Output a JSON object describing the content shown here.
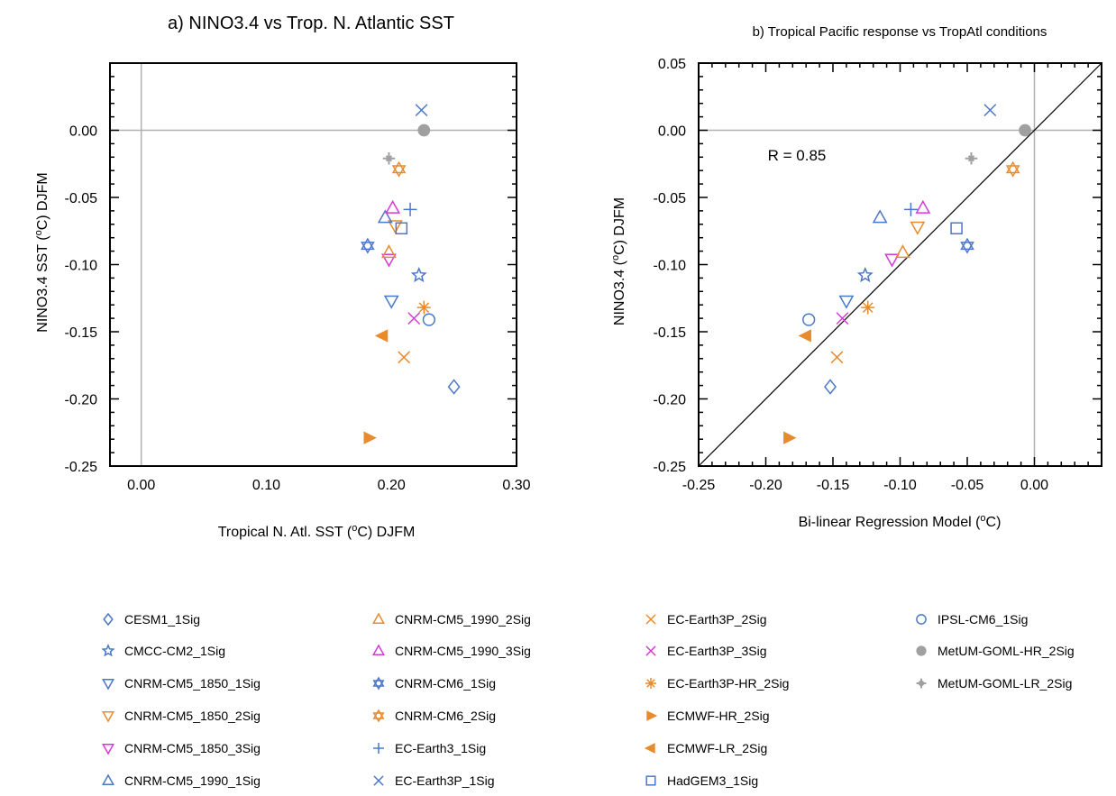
{
  "chart_data": [
    {
      "type": "scatter",
      "title": "a) NINO3.4 vs Trop. N. Atlantic SST",
      "xlabel_pre": "Tropical N. Atl. SST (",
      "xlabel_sup": "o",
      "xlabel_post": "C) DJFM",
      "ylabel_pre": "NINO3.4 SST (",
      "ylabel_sup": "o",
      "ylabel_post": "C) DJFM",
      "xlim": [
        -0.025,
        0.3
      ],
      "ylim": [
        -0.25,
        0.05
      ],
      "xticks": [
        {
          "v": 0.0,
          "label": "0.00"
        },
        {
          "v": 0.1,
          "label": "0.10"
        },
        {
          "v": 0.2,
          "label": "0.20"
        },
        {
          "v": 0.3,
          "label": "0.30"
        }
      ],
      "yticks": [
        {
          "v": 0.0,
          "label": "0.00"
        },
        {
          "v": -0.05,
          "label": "-0.05"
        },
        {
          "v": -0.1,
          "label": "-0.10"
        },
        {
          "v": -0.15,
          "label": "-0.15"
        },
        {
          "v": -0.2,
          "label": "-0.20"
        },
        {
          "v": -0.25,
          "label": "-0.25"
        }
      ],
      "reference_lines": {
        "x": 0.0,
        "y": 0.0
      },
      "points": [
        {
          "model": "CESM1_1Sig",
          "x": 0.25,
          "y": -0.191
        },
        {
          "model": "CMCC-CM2_1Sig",
          "x": 0.222,
          "y": -0.108
        },
        {
          "model": "CNRM-CM5_1850_1Sig",
          "x": 0.2,
          "y": -0.127
        },
        {
          "model": "CNRM-CM5_1850_2Sig",
          "x": 0.203,
          "y": -0.071
        },
        {
          "model": "CNRM-CM5_1850_3Sig",
          "x": 0.198,
          "y": -0.096
        },
        {
          "model": "CNRM-CM5_1990_1Sig",
          "x": 0.195,
          "y": -0.065
        },
        {
          "model": "CNRM-CM5_1990_2Sig",
          "x": 0.198,
          "y": -0.091
        },
        {
          "model": "CNRM-CM5_1990_3Sig",
          "x": 0.201,
          "y": -0.058
        },
        {
          "model": "CNRM-CM6_1Sig",
          "x": 0.181,
          "y": -0.086
        },
        {
          "model": "CNRM-CM6_2Sig",
          "x": 0.206,
          "y": -0.029
        },
        {
          "model": "EC-Earth3_1Sig",
          "x": 0.215,
          "y": -0.059
        },
        {
          "model": "EC-Earth3P_1Sig",
          "x": 0.224,
          "y": 0.015
        },
        {
          "model": "EC-Earth3P_2Sig",
          "x": 0.21,
          "y": -0.169
        },
        {
          "model": "EC-Earth3P_3Sig",
          "x": 0.218,
          "y": -0.14
        },
        {
          "model": "EC-Earth3P-HR_2Sig",
          "x": 0.226,
          "y": -0.132
        },
        {
          "model": "ECMWF-HR_2Sig",
          "x": 0.182,
          "y": -0.229
        },
        {
          "model": "ECMWF-LR_2Sig",
          "x": 0.193,
          "y": -0.153
        },
        {
          "model": "HadGEM3_1Sig",
          "x": 0.208,
          "y": -0.073
        },
        {
          "model": "IPSL-CM6_1Sig",
          "x": 0.23,
          "y": -0.141
        },
        {
          "model": "MetUM-GOML-HR_2Sig",
          "x": 0.226,
          "y": 0.0
        },
        {
          "model": "MetUM-GOML-LR_2Sig",
          "x": 0.198,
          "y": -0.021
        }
      ]
    },
    {
      "type": "scatter",
      "title": "b) Tropical Pacific response vs TropAtl conditions",
      "xlabel_pre": "Bi-linear Regression Model (",
      "xlabel_sup": "o",
      "xlabel_post": "C)",
      "ylabel_pre": "NINO3.4 (",
      "ylabel_sup": "o",
      "ylabel_post": "C) DJFM",
      "annotation": "R = 0.85",
      "xlim": [
        -0.25,
        0.05
      ],
      "ylim": [
        -0.25,
        0.05
      ],
      "xticks": [
        {
          "v": -0.25,
          "label": "-0.25"
        },
        {
          "v": -0.2,
          "label": "-0.20"
        },
        {
          "v": -0.15,
          "label": "-0.15"
        },
        {
          "v": -0.1,
          "label": "-0.10"
        },
        {
          "v": -0.05,
          "label": "-0.05"
        },
        {
          "v": 0.0,
          "label": "0.00"
        }
      ],
      "yticks": [
        {
          "v": 0.05,
          "label": "0.05"
        },
        {
          "v": 0.0,
          "label": "0.00"
        },
        {
          "v": -0.05,
          "label": "-0.05"
        },
        {
          "v": -0.1,
          "label": "-0.10"
        },
        {
          "v": -0.15,
          "label": "-0.15"
        },
        {
          "v": -0.2,
          "label": "-0.20"
        },
        {
          "v": -0.25,
          "label": "-0.25"
        }
      ],
      "reference_lines": {
        "x": 0.0,
        "y": 0.0
      },
      "one_to_one_line": true,
      "points": [
        {
          "model": "CESM1_1Sig",
          "x": -0.152,
          "y": -0.191
        },
        {
          "model": "CMCC-CM2_1Sig",
          "x": -0.126,
          "y": -0.108
        },
        {
          "model": "CNRM-CM5_1850_1Sig",
          "x": -0.14,
          "y": -0.127
        },
        {
          "model": "CNRM-CM5_1850_2Sig",
          "x": -0.087,
          "y": -0.072
        },
        {
          "model": "CNRM-CM5_1850_3Sig",
          "x": -0.106,
          "y": -0.096
        },
        {
          "model": "CNRM-CM5_1990_1Sig",
          "x": -0.115,
          "y": -0.065
        },
        {
          "model": "CNRM-CM5_1990_2Sig",
          "x": -0.098,
          "y": -0.091
        },
        {
          "model": "CNRM-CM5_1990_3Sig",
          "x": -0.083,
          "y": -0.058
        },
        {
          "model": "CNRM-CM6_1Sig",
          "x": -0.05,
          "y": -0.086
        },
        {
          "model": "CNRM-CM6_2Sig",
          "x": -0.016,
          "y": -0.029
        },
        {
          "model": "EC-Earth3_1Sig",
          "x": -0.092,
          "y": -0.059
        },
        {
          "model": "EC-Earth3P_1Sig",
          "x": -0.033,
          "y": 0.015
        },
        {
          "model": "EC-Earth3P_2Sig",
          "x": -0.147,
          "y": -0.169
        },
        {
          "model": "EC-Earth3P_3Sig",
          "x": -0.143,
          "y": -0.14
        },
        {
          "model": "EC-Earth3P-HR_2Sig",
          "x": -0.124,
          "y": -0.132
        },
        {
          "model": "ECMWF-HR_2Sig",
          "x": -0.183,
          "y": -0.229
        },
        {
          "model": "ECMWF-LR_2Sig",
          "x": -0.17,
          "y": -0.153
        },
        {
          "model": "HadGEM3_1Sig",
          "x": -0.058,
          "y": -0.073
        },
        {
          "model": "IPSL-CM6_1Sig",
          "x": -0.168,
          "y": -0.141
        },
        {
          "model": "MetUM-GOML-HR_2Sig",
          "x": -0.007,
          "y": 0.0
        },
        {
          "model": "MetUM-GOML-LR_2Sig",
          "x": -0.047,
          "y": -0.021
        }
      ]
    }
  ],
  "legend": [
    {
      "label": "CESM1_1Sig",
      "marker": "diamond",
      "color": "#4a78c8"
    },
    {
      "label": "CMCC-CM2_1Sig",
      "marker": "star",
      "color": "#4a78c8"
    },
    {
      "label": "CNRM-CM5_1850_1Sig",
      "marker": "triangle-down",
      "color": "#4a78c8"
    },
    {
      "label": "CNRM-CM5_1850_2Sig",
      "marker": "triangle-down",
      "color": "#e88b2e"
    },
    {
      "label": "CNRM-CM5_1850_3Sig",
      "marker": "triangle-down",
      "color": "#d63ad6"
    },
    {
      "label": "CNRM-CM5_1990_1Sig",
      "marker": "triangle-up",
      "color": "#4a78c8"
    },
    {
      "label": "CNRM-CM5_1990_2Sig",
      "marker": "triangle-up",
      "color": "#e88b2e"
    },
    {
      "label": "CNRM-CM5_1990_3Sig",
      "marker": "triangle-up",
      "color": "#d63ad6"
    },
    {
      "label": "CNRM-CM6_1Sig",
      "marker": "hexagram",
      "color": "#4a78c8"
    },
    {
      "label": "CNRM-CM6_2Sig",
      "marker": "hexagram",
      "color": "#e88b2e"
    },
    {
      "label": "EC-Earth3_1Sig",
      "marker": "plus",
      "color": "#4a78c8"
    },
    {
      "label": "EC-Earth3P_1Sig",
      "marker": "cross",
      "color": "#4a78c8"
    },
    {
      "label": "EC-Earth3P_2Sig",
      "marker": "cross",
      "color": "#e88b2e"
    },
    {
      "label": "EC-Earth3P_3Sig",
      "marker": "cross",
      "color": "#d63ad6"
    },
    {
      "label": "EC-Earth3P-HR_2Sig",
      "marker": "asterisk",
      "color": "#e88b2e"
    },
    {
      "label": "ECMWF-HR_2Sig",
      "marker": "triangle-right-filled",
      "color": "#e88b2e"
    },
    {
      "label": "ECMWF-LR_2Sig",
      "marker": "triangle-left-filled",
      "color": "#e88b2e"
    },
    {
      "label": "HadGEM3_1Sig",
      "marker": "square",
      "color": "#4a78c8"
    },
    {
      "label": "IPSL-CM6_1Sig",
      "marker": "circle",
      "color": "#4a78c8"
    },
    {
      "label": "MetUM-GOML-HR_2Sig",
      "marker": "circle-filled",
      "color": "#a0a0a0"
    },
    {
      "label": "MetUM-GOML-LR_2Sig",
      "marker": "plus-small-star",
      "color": "#a0a0a0"
    }
  ]
}
